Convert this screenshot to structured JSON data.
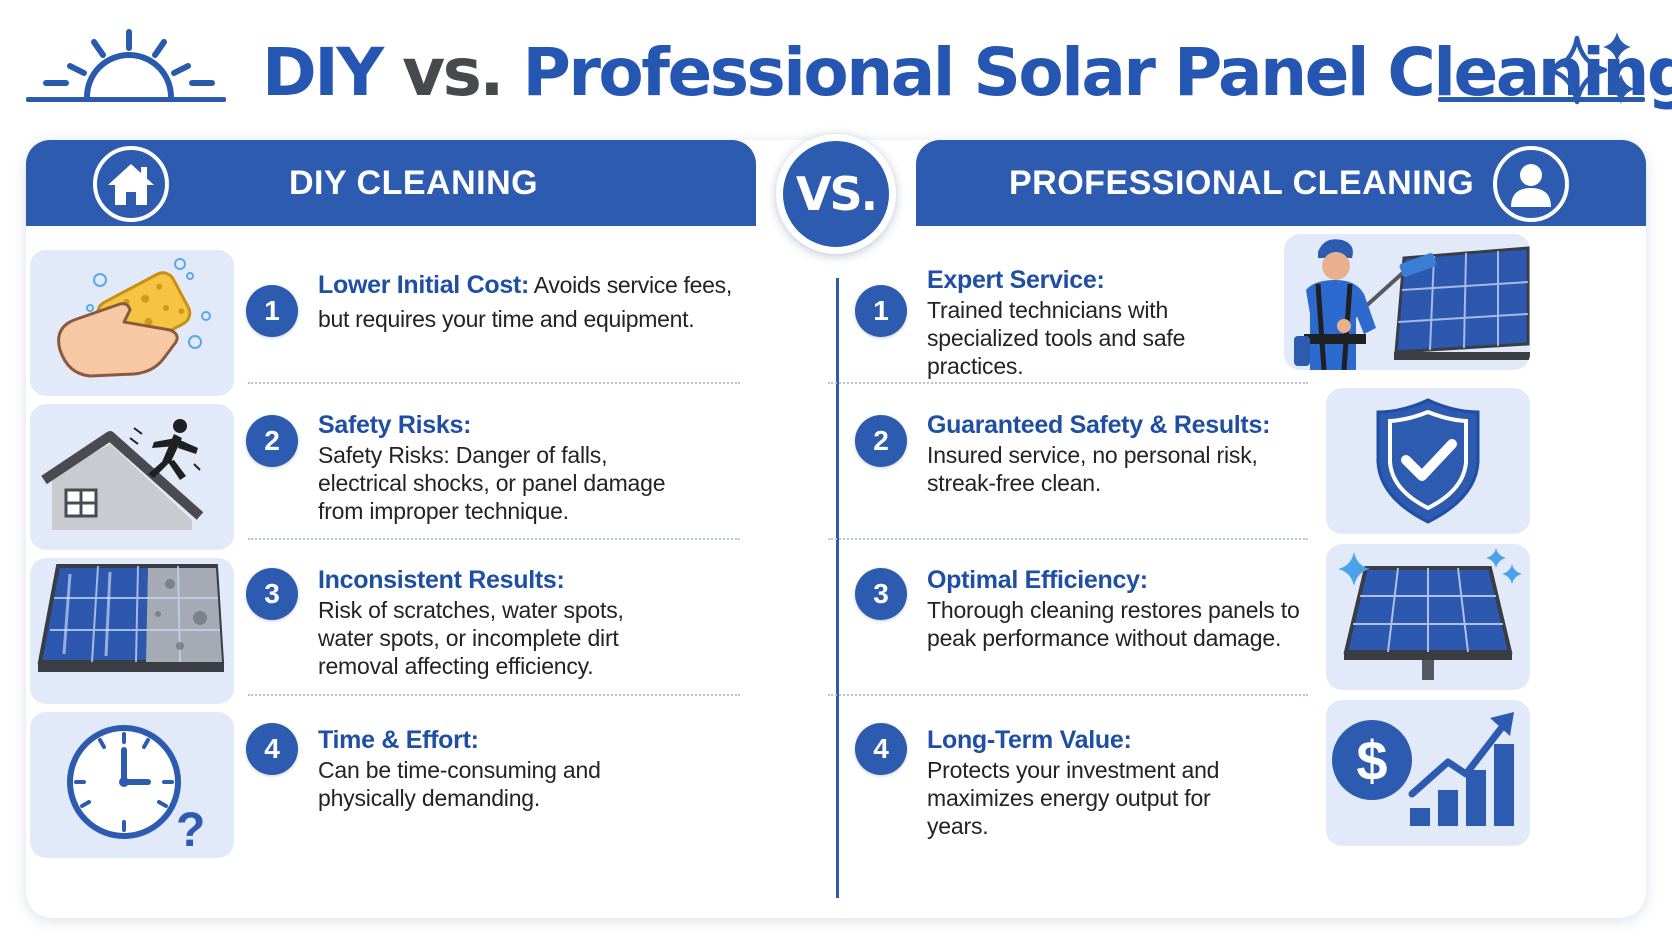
{
  "title": {
    "part1": "DIY",
    "part2": " vs. ",
    "part3": "Professional Solar Panel Cleaning"
  },
  "vs_badge": "VS.",
  "diy": {
    "header": "DIY CLEANING",
    "items": [
      {
        "num": "1",
        "title": "Lower Initial Cost:",
        "text": " Avoids service fees, but requires your time and equipment."
      },
      {
        "num": "2",
        "title": "Safety Risks:",
        "text": "Safety Risks: Danger of falls, electrical shocks, or panel damage from improper technique."
      },
      {
        "num": "3",
        "title": "Inconsistent Results:",
        "text": "Risk of scratches, water spots, water spots, or incomplete dirt removal affecting efficiency."
      },
      {
        "num": "4",
        "title": "Time & Effort:",
        "text": "Can be time-consuming and physically demanding."
      }
    ]
  },
  "pro": {
    "header": "PROFESSIONAL CLEANING",
    "items": [
      {
        "num": "1",
        "title": "Expert Service:",
        "text": "Trained technicians with specialized tools and safe practices."
      },
      {
        "num": "2",
        "title": "Guaranteed Safety & Results:",
        "text": "Insured service, no personal risk, streak-free clean."
      },
      {
        "num": "3",
        "title": "Optimal Efficiency:",
        "text": "Thorough cleaning restores panels to peak performance without damage."
      },
      {
        "num": "4",
        "title": "Long-Term Value:",
        "text": "Protects your investment and maximizes energy output for years."
      }
    ]
  },
  "icons": {
    "title_left": "sun-icon",
    "title_right": "sparkle-icon",
    "diy_header": "house-icon",
    "pro_header": "user-icon",
    "diy_images": [
      "hand-sponge-icon",
      "roof-fall-icon",
      "dirty-solar-panel-icon",
      "clock-question-icon"
    ],
    "pro_images": [
      "technician-cleaning-icon",
      "shield-check-icon",
      "clean-solar-panel-icon",
      "dollar-growth-icon"
    ]
  },
  "colors": {
    "primary": "#2c5bb0",
    "title_blue": "#2456b2",
    "title_gray": "#48494d",
    "image_bg": "#e2eafa"
  }
}
